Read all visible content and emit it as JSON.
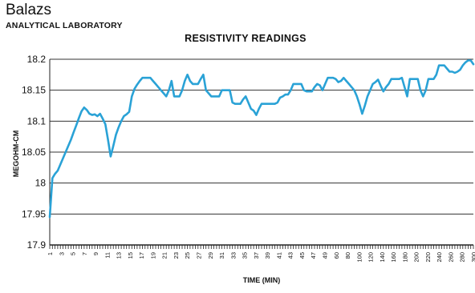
{
  "header": {
    "brand": "Balazs",
    "subtitle": "ANALYTICAL LABORATORY"
  },
  "chart_data": {
    "type": "line",
    "title": "RESISTIVITY READINGS",
    "xlabel": "TIME (MIN)",
    "ylabel": "MEGOHM-CM",
    "ylim": [
      17.9,
      18.2
    ],
    "yticks": [
      "18.2",
      "18.15",
      "18.1",
      "18.05",
      "18",
      "17.95",
      "17.9"
    ],
    "grid": "horizontal",
    "line_color": "#2aa2d6",
    "x_tick_labels": [
      "1",
      "3",
      "5",
      "7",
      "9",
      "11",
      "13",
      "15",
      "17",
      "19",
      "21",
      "23",
      "25",
      "27",
      "29",
      "31",
      "33",
      "35",
      "37",
      "39",
      "41",
      "43",
      "45",
      "47",
      "49",
      "60",
      "80",
      "100",
      "120",
      "140",
      "160",
      "180",
      "200",
      "220",
      "240",
      "260",
      "280",
      "300"
    ],
    "series": [
      {
        "values": [
          17.945,
          18.008,
          18.015,
          18.02,
          18.03,
          18.04,
          18.05,
          18.06,
          18.07,
          18.082,
          18.093,
          18.105,
          18.116,
          18.122,
          18.118,
          18.112,
          18.11,
          18.111,
          18.108,
          18.112,
          18.104,
          18.095,
          18.07,
          18.043,
          18.06,
          18.078,
          18.09,
          18.1,
          18.108,
          18.111,
          18.115,
          18.14,
          18.152,
          18.159,
          18.165,
          18.17,
          18.17,
          18.17,
          18.17,
          18.165,
          18.16,
          18.155,
          18.15,
          18.145,
          18.14,
          18.15,
          18.165,
          18.14,
          18.14,
          18.14,
          18.15,
          18.165,
          18.175,
          18.165,
          18.16,
          18.16,
          18.16,
          18.168,
          18.175,
          18.15,
          18.145,
          18.14,
          18.14,
          18.14,
          18.14,
          18.15,
          18.15,
          18.15,
          18.15,
          18.13,
          18.128,
          18.128,
          18.128,
          18.135,
          18.14,
          18.13,
          18.12,
          18.117,
          18.11,
          18.12,
          18.128,
          18.128,
          18.128,
          18.128,
          18.128,
          18.128,
          18.13,
          18.138,
          18.14,
          18.143,
          18.143,
          18.15,
          18.16,
          18.16,
          18.16,
          18.16,
          18.15,
          18.148,
          18.148,
          18.148,
          18.155,
          18.16,
          18.158,
          18.15,
          18.16,
          18.17,
          18.17,
          18.17,
          18.168,
          18.163,
          18.165,
          18.17,
          18.165,
          18.16,
          18.155,
          18.15,
          18.14,
          18.127,
          18.112,
          18.125,
          18.14,
          18.15,
          18.16,
          18.163,
          18.167,
          18.157,
          18.148,
          18.155,
          18.16,
          18.168,
          18.168,
          18.168,
          18.168,
          18.17,
          18.155,
          18.14,
          18.168,
          18.168,
          18.168,
          18.168,
          18.15,
          18.14,
          18.15,
          18.168,
          18.168,
          18.168,
          18.175,
          18.19,
          18.19,
          18.19,
          18.185,
          18.18,
          18.18,
          18.178,
          18.18,
          18.183,
          18.19,
          18.195,
          18.198,
          18.198,
          18.192
        ]
      }
    ]
  }
}
